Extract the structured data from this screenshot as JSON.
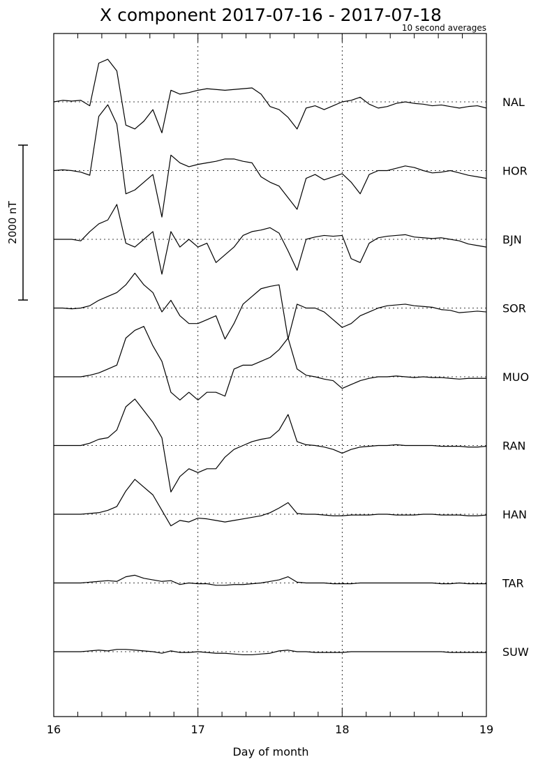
{
  "chart_data": {
    "type": "stacked-line",
    "title": "X component 2017-07-16 - 2017-07-18",
    "subtitle": "10 second averages",
    "x_label": "Day of month",
    "xlim": [
      16,
      19
    ],
    "xticks": [
      16,
      17,
      18,
      19
    ],
    "grid": true,
    "scale_bar": {
      "value": 2000,
      "label": "2000 nT"
    },
    "x": [
      16,
      16.0625,
      16.125,
      16.1875,
      16.25,
      16.3125,
      16.375,
      16.4375,
      16.5,
      16.5625,
      16.625,
      16.6875,
      16.75,
      16.8125,
      16.875,
      16.9375,
      17,
      17.0625,
      17.125,
      17.1875,
      17.25,
      17.3125,
      17.375,
      17.4375,
      17.5,
      17.5625,
      17.625,
      17.6875,
      17.75,
      17.8125,
      17.875,
      17.9375,
      18,
      18.0625,
      18.125,
      18.1875,
      18.25,
      18.3125,
      18.375,
      18.4375,
      18.5,
      18.5625,
      18.625,
      18.6875,
      18.75,
      18.8125,
      18.875,
      18.9375,
      19
    ],
    "series": [
      {
        "name": "NAL",
        "color": "#000000",
        "values": [
          0,
          20,
          10,
          20,
          -50,
          500,
          550,
          400,
          -300,
          -350,
          -250,
          -100,
          -400,
          150,
          100,
          120,
          150,
          170,
          160,
          150,
          160,
          170,
          180,
          100,
          -60,
          -100,
          -200,
          -350,
          -80,
          -50,
          -100,
          -50,
          0,
          20,
          60,
          -30,
          -80,
          -60,
          -20,
          0,
          -20,
          -30,
          -50,
          -40,
          -60,
          -80,
          -60,
          -50,
          -80
        ]
      },
      {
        "name": "HOR",
        "color": "#000000",
        "values": [
          0,
          10,
          0,
          -20,
          -60,
          700,
          850,
          600,
          -300,
          -250,
          -150,
          -50,
          -600,
          200,
          100,
          50,
          80,
          100,
          120,
          150,
          150,
          120,
          100,
          -80,
          -150,
          -200,
          -350,
          -500,
          -100,
          -50,
          -120,
          -80,
          -40,
          -150,
          -300,
          -50,
          0,
          0,
          30,
          60,
          40,
          0,
          -30,
          -20,
          0,
          -30,
          -60,
          -80,
          -100
        ]
      },
      {
        "name": "BJN",
        "color": "#000000",
        "values": [
          0,
          0,
          0,
          -20,
          100,
          200,
          250,
          450,
          -50,
          -100,
          0,
          100,
          -450,
          100,
          -100,
          0,
          -100,
          -50,
          -300,
          -200,
          -100,
          50,
          100,
          120,
          150,
          80,
          -150,
          -400,
          0,
          30,
          50,
          40,
          50,
          -250,
          -300,
          -50,
          20,
          40,
          50,
          60,
          30,
          20,
          10,
          20,
          0,
          -20,
          -60,
          -80,
          -100
        ]
      },
      {
        "name": "SOR",
        "color": "#000000",
        "values": [
          0,
          0,
          -10,
          0,
          30,
          100,
          150,
          200,
          300,
          450,
          300,
          200,
          -50,
          100,
          -100,
          -200,
          -200,
          -150,
          -100,
          -400,
          -200,
          50,
          150,
          250,
          280,
          300,
          -400,
          50,
          0,
          0,
          -50,
          -150,
          -250,
          -200,
          -100,
          -50,
          0,
          30,
          40,
          50,
          30,
          20,
          10,
          -20,
          -30,
          -60,
          -50,
          -40,
          -50
        ]
      },
      {
        "name": "MUO",
        "color": "#000000",
        "values": [
          0,
          0,
          0,
          0,
          20,
          50,
          100,
          150,
          500,
          600,
          650,
          400,
          200,
          -200,
          -300,
          -200,
          -300,
          -200,
          -200,
          -250,
          100,
          150,
          150,
          200,
          250,
          350,
          500,
          100,
          20,
          0,
          -30,
          -50,
          -150,
          -100,
          -50,
          -20,
          0,
          0,
          10,
          0,
          -10,
          0,
          -10,
          -10,
          -20,
          -30,
          -20,
          -20,
          -20
        ]
      },
      {
        "name": "RAN",
        "color": "#000000",
        "values": [
          0,
          0,
          0,
          0,
          30,
          80,
          100,
          200,
          500,
          600,
          450,
          300,
          100,
          -600,
          -400,
          -300,
          -350,
          -300,
          -300,
          -150,
          -50,
          0,
          50,
          80,
          100,
          200,
          400,
          50,
          10,
          0,
          -20,
          -50,
          -100,
          -50,
          -20,
          -10,
          0,
          0,
          10,
          0,
          0,
          0,
          0,
          -10,
          -10,
          -10,
          -20,
          -20,
          -10
        ]
      },
      {
        "name": "HAN",
        "color": "#000000",
        "values": [
          0,
          0,
          0,
          0,
          10,
          20,
          50,
          100,
          300,
          450,
          350,
          250,
          50,
          -150,
          -80,
          -100,
          -50,
          -60,
          -80,
          -100,
          -80,
          -60,
          -40,
          -20,
          20,
          80,
          150,
          10,
          0,
          0,
          -10,
          -20,
          -20,
          -10,
          -10,
          -10,
          0,
          0,
          -10,
          -10,
          -10,
          0,
          0,
          -10,
          -10,
          -10,
          -20,
          -20,
          -10
        ]
      },
      {
        "name": "TAR",
        "color": "#000000",
        "values": [
          0,
          0,
          0,
          0,
          10,
          20,
          30,
          20,
          80,
          100,
          60,
          40,
          20,
          30,
          -20,
          0,
          -10,
          -10,
          -30,
          -30,
          -20,
          -20,
          -10,
          0,
          20,
          40,
          80,
          10,
          0,
          0,
          0,
          -10,
          -10,
          -10,
          0,
          0,
          0,
          0,
          0,
          0,
          0,
          0,
          0,
          -10,
          -10,
          0,
          -10,
          -10,
          -10
        ]
      },
      {
        "name": "SUW",
        "color": "#000000",
        "values": [
          0,
          0,
          0,
          0,
          10,
          20,
          10,
          30,
          30,
          20,
          10,
          0,
          -20,
          10,
          -10,
          -10,
          0,
          -10,
          -20,
          -20,
          -30,
          -40,
          -40,
          -30,
          -20,
          10,
          20,
          0,
          0,
          -10,
          -10,
          -10,
          -10,
          0,
          0,
          0,
          0,
          0,
          0,
          0,
          0,
          0,
          0,
          0,
          -10,
          -10,
          -10,
          -10,
          -10
        ]
      }
    ]
  }
}
